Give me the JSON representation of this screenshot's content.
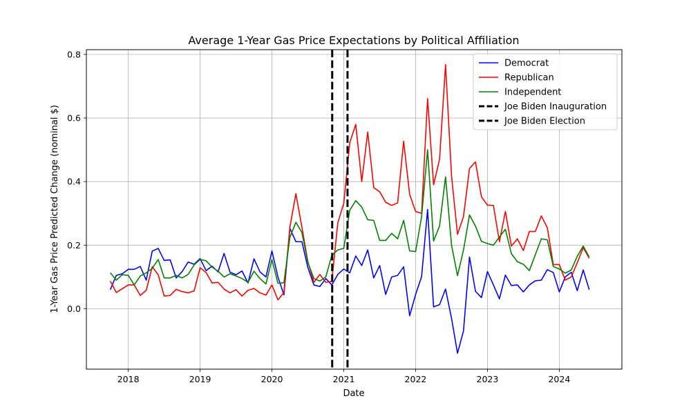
{
  "chart_data": {
    "type": "line",
    "title": "Average 1-Year Gas Price Expectations by Political Affiliation",
    "xlabel": "Date",
    "ylabel": "1-Year Gas Price Predicted Change (nominal $)",
    "xlim": [
      "2017-06-01",
      "2024-11-15"
    ],
    "ylim": [
      -0.19,
      0.815
    ],
    "x_ticks": [
      "2018",
      "2019",
      "2020",
      "2021",
      "2022",
      "2023",
      "2024"
    ],
    "y_ticks": [
      "0.0",
      "0.2",
      "0.4",
      "0.6",
      "0.8"
    ],
    "grid": true,
    "legend_location": "upper right",
    "x": [
      "2017-10",
      "2017-11",
      "2017-12",
      "2018-01",
      "2018-02",
      "2018-03",
      "2018-04",
      "2018-05",
      "2018-06",
      "2018-07",
      "2018-08",
      "2018-09",
      "2018-10",
      "2018-11",
      "2018-12",
      "2019-01",
      "2019-02",
      "2019-03",
      "2019-04",
      "2019-05",
      "2019-06",
      "2019-07",
      "2019-08",
      "2019-09",
      "2019-10",
      "2019-11",
      "2019-12",
      "2020-01",
      "2020-02",
      "2020-03",
      "2020-04",
      "2020-05",
      "2020-06",
      "2020-07",
      "2020-08",
      "2020-09",
      "2020-10",
      "2020-11",
      "2020-12",
      "2021-01",
      "2021-02",
      "2021-03",
      "2021-04",
      "2021-05",
      "2021-06",
      "2021-07",
      "2021-08",
      "2021-09",
      "2021-10",
      "2021-11",
      "2021-12",
      "2022-01",
      "2022-02",
      "2022-03",
      "2022-04",
      "2022-05",
      "2022-06",
      "2022-07",
      "2022-08",
      "2022-09",
      "2022-10",
      "2022-11",
      "2022-12",
      "2023-01",
      "2023-02",
      "2023-03",
      "2023-04",
      "2023-05",
      "2023-06",
      "2023-07",
      "2023-08",
      "2023-09",
      "2023-10",
      "2023-11",
      "2023-12",
      "2024-01",
      "2024-02",
      "2024-03",
      "2024-04",
      "2024-05",
      "2024-06"
    ],
    "series": [
      {
        "name": "Democrat",
        "color": "#0000ff",
        "values": [
          0.06,
          0.105,
          0.11,
          0.124,
          0.124,
          0.133,
          0.09,
          0.181,
          0.19,
          0.152,
          0.154,
          0.097,
          0.117,
          0.147,
          0.14,
          0.158,
          0.12,
          0.134,
          0.116,
          0.174,
          0.115,
          0.107,
          0.119,
          0.081,
          0.157,
          0.116,
          0.1,
          0.182,
          0.1,
          0.044,
          0.253,
          0.211,
          0.211,
          0.13,
          0.075,
          0.07,
          0.095,
          0.075,
          0.108,
          0.125,
          0.113,
          0.166,
          0.136,
          0.185,
          0.097,
          0.136,
          0.045,
          0.1,
          0.105,
          0.132,
          -0.022,
          0.045,
          0.101,
          0.312,
          0.006,
          0.013,
          0.062,
          -0.03,
          -0.14,
          -0.07,
          0.163,
          0.055,
          0.035,
          0.117,
          0.075,
          0.031,
          0.106,
          0.073,
          0.075,
          0.053,
          0.075,
          0.088,
          0.09,
          0.123,
          0.114,
          0.053,
          0.1,
          0.115,
          0.057,
          0.122,
          0.06
        ]
      },
      {
        "name": "Republican",
        "color": "#ff0000",
        "values": [
          0.087,
          0.051,
          0.063,
          0.075,
          0.075,
          0.042,
          0.058,
          0.132,
          0.107,
          0.04,
          0.042,
          0.061,
          0.054,
          0.05,
          0.056,
          0.129,
          0.114,
          0.081,
          0.083,
          0.062,
          0.05,
          0.06,
          0.04,
          0.058,
          0.064,
          0.05,
          0.043,
          0.075,
          0.028,
          0.051,
          0.257,
          0.362,
          0.257,
          0.148,
          0.083,
          0.108,
          0.083,
          0.086,
          0.27,
          0.332,
          0.522,
          0.58,
          0.4,
          0.556,
          0.381,
          0.368,
          0.335,
          0.325,
          0.333,
          0.527,
          0.36,
          0.306,
          0.3,
          0.661,
          0.39,
          0.47,
          0.768,
          0.418,
          0.234,
          0.29,
          0.441,
          0.462,
          0.352,
          0.326,
          0.325,
          0.211,
          0.306,
          0.197,
          0.22,
          0.183,
          0.243,
          0.243,
          0.292,
          0.255,
          0.139,
          0.139,
          0.09,
          0.1,
          0.145,
          0.192,
          0.159
        ]
      },
      {
        "name": "Independent",
        "color": "#008000",
        "values": [
          0.113,
          0.09,
          0.107,
          0.105,
          0.075,
          0.103,
          0.113,
          0.127,
          0.155,
          0.097,
          0.097,
          0.105,
          0.097,
          0.108,
          0.138,
          0.155,
          0.151,
          0.131,
          0.118,
          0.1,
          0.11,
          0.103,
          0.095,
          0.083,
          0.118,
          0.095,
          0.078,
          0.155,
          0.08,
          0.082,
          0.225,
          0.272,
          0.24,
          0.146,
          0.095,
          0.087,
          0.1,
          0.168,
          0.185,
          0.19,
          0.31,
          0.34,
          0.32,
          0.28,
          0.278,
          0.215,
          0.215,
          0.237,
          0.22,
          0.278,
          0.182,
          0.18,
          0.29,
          0.5,
          0.213,
          0.26,
          0.415,
          0.2,
          0.104,
          0.185,
          0.295,
          0.26,
          0.212,
          0.205,
          0.2,
          0.226,
          0.25,
          0.173,
          0.148,
          0.14,
          0.12,
          0.17,
          0.22,
          0.217,
          0.133,
          0.125,
          0.112,
          0.122,
          0.165,
          0.197,
          0.163
        ]
      }
    ],
    "vlines": [
      {
        "name": "Joe Biden Inauguration",
        "x": "2020-11-03",
        "color": "#000000",
        "style": "dashed"
      },
      {
        "name": "Joe Biden Election",
        "x": "2021-01-20",
        "color": "#000000",
        "style": "dashed"
      }
    ]
  }
}
